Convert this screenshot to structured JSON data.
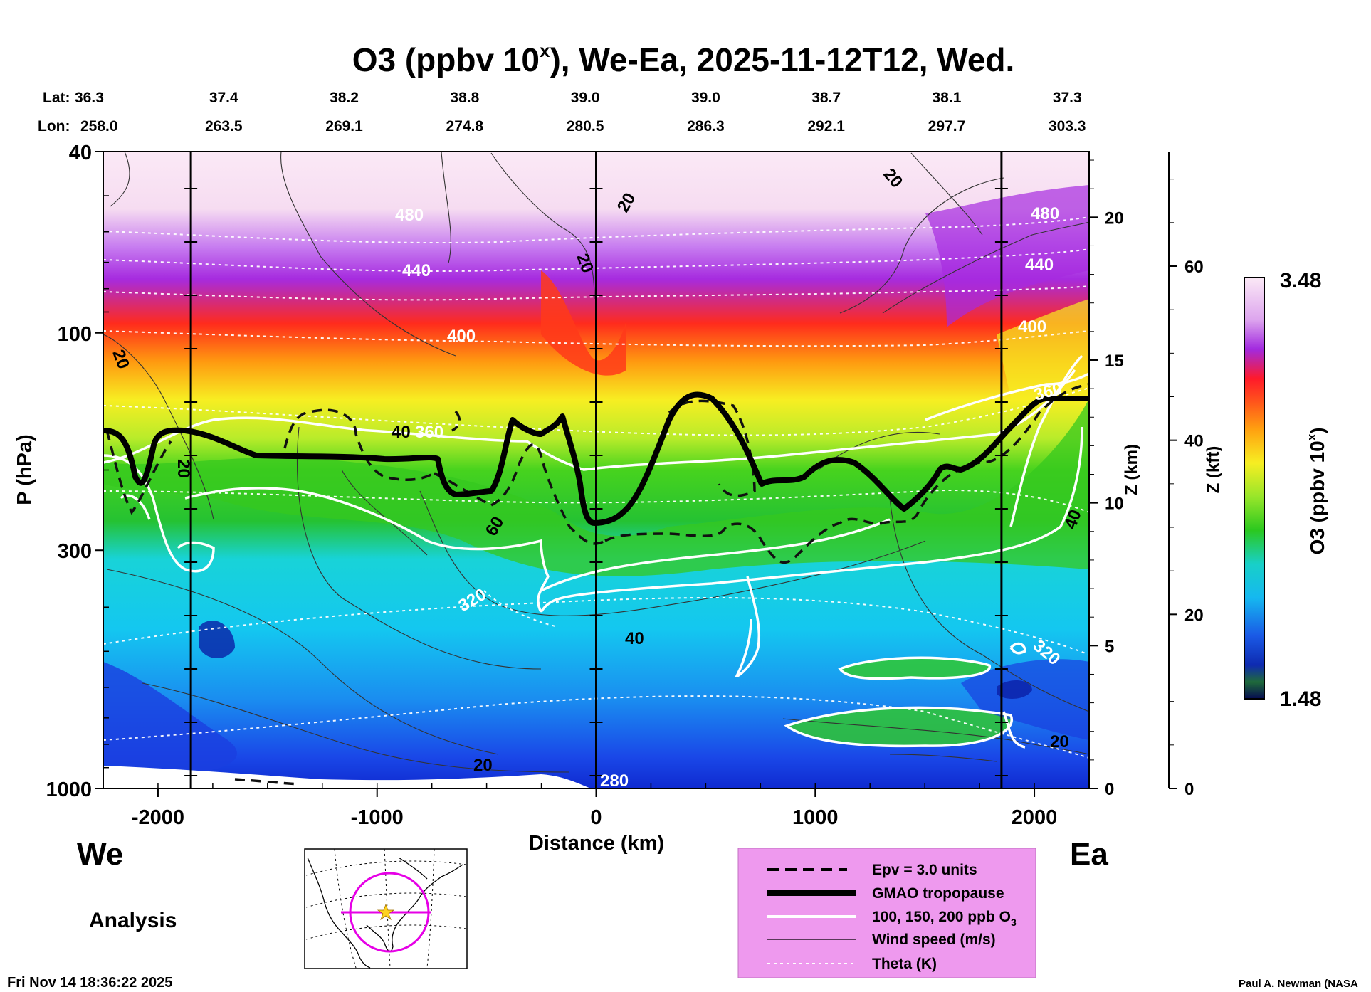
{
  "chart_data": {
    "type": "heatmap",
    "title": "O3 (ppbv 10",
    "title_sup": "x",
    "title_suffix": "), We-Ea, 2025-11-12T12, Wed.",
    "lat_label": "Lat:",
    "lon_label": "Lon:",
    "lat_values": [
      "36.3",
      "37.4",
      "38.2",
      "38.8",
      "39.0",
      "39.0",
      "38.7",
      "38.1",
      "37.3"
    ],
    "lon_values": [
      "258.0",
      "263.5",
      "269.1",
      "274.8",
      "280.5",
      "286.3",
      "292.1",
      "297.7",
      "303.3"
    ],
    "xlabel": "Distance (km)",
    "xlim": [
      -2250,
      2250
    ],
    "x_ticks": [
      -2000,
      -1000,
      0,
      1000,
      2000
    ],
    "x_tick_labels": [
      "-2000",
      "-1000",
      "0",
      "1000",
      "2000"
    ],
    "vertical_lines_km": [
      -1850,
      0,
      1850
    ],
    "ylabel": "P (hPa)",
    "ylim_hpa": [
      1000,
      40
    ],
    "y_ticks_hpa": [
      40,
      100,
      300,
      1000
    ],
    "y_tick_labels": [
      "40",
      "100",
      "300",
      "1000"
    ],
    "z_km_label": "Z (km)",
    "z_km_ticks": [
      "0",
      "5",
      "10",
      "15",
      "20"
    ],
    "z_kft_label": "Z (kft)",
    "z_kft_ticks": [
      "0",
      "20",
      "40",
      "60"
    ],
    "colorbar": {
      "label": "O3 (ppbv 10",
      "label_sup": "x",
      "label_suffix": ")",
      "max_label": "3.48",
      "min_label": "1.48",
      "range": [
        1.48,
        3.48
      ]
    },
    "ozone_bands": [
      {
        "name": "stratosphere-high",
        "color": "#fbe3f4",
        "approx_value": 3.48
      },
      {
        "name": "purple",
        "color": "#b24de8",
        "approx_value": 3.3
      },
      {
        "name": "red",
        "color": "#ff2a1a",
        "approx_value": 3.0
      },
      {
        "name": "orange",
        "color": "#ff9a10",
        "approx_value": 2.85
      },
      {
        "name": "yellow",
        "color": "#f7ee22",
        "approx_value": 2.7
      },
      {
        "name": "green",
        "color": "#3fd41f",
        "approx_value": 2.4
      },
      {
        "name": "cyan",
        "color": "#19cfe0",
        "approx_value": 1.9
      },
      {
        "name": "blue",
        "color": "#1b56e6",
        "approx_value": 1.6
      }
    ],
    "theta_labels": [
      "480",
      "440",
      "400",
      "360",
      "320",
      "280",
      "480",
      "440",
      "400",
      "360",
      "320"
    ],
    "wind_labels": [
      "20",
      "20",
      "20",
      "20",
      "40",
      "60",
      "40",
      "20",
      "20",
      "40",
      "20"
    ],
    "side_labels": {
      "west": "We",
      "east": "Ea"
    },
    "analysis_label": "Analysis",
    "legend": [
      {
        "label": "Epv = 3.0 units",
        "style": "dashed"
      },
      {
        "label": "GMAO tropopause",
        "style": "thick"
      },
      {
        "label": "100, 150, 200 ppb O",
        "sub": "3",
        "style": "white"
      },
      {
        "label": "Wind speed (m/s)",
        "style": "thin"
      },
      {
        "label": "Theta (K)",
        "style": "dotted"
      }
    ],
    "timestamp": "Fri Nov 14 18:36:22 2025",
    "credit": "Paul A. Newman (NASA"
  },
  "colors": {
    "legend_bg": "#ee99ee",
    "map_track": "#e600e6",
    "star": "#ffd21e"
  }
}
